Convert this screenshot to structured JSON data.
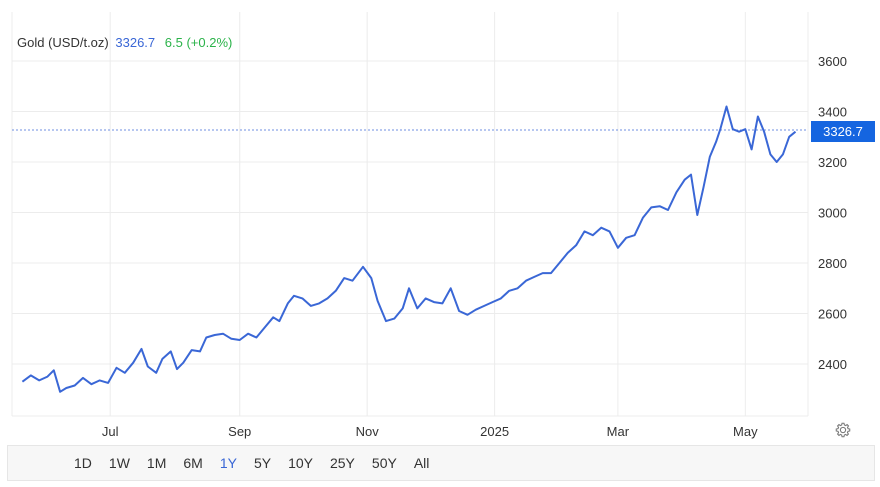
{
  "header": {
    "name": "Gold (USD/t.oz)",
    "price": "3326.7",
    "change": "6.5 (+0.2%)"
  },
  "price_tag": "3326.7",
  "colors": {
    "line": "#3a67d6",
    "tag": "#1565e0",
    "positive": "#2bb34a"
  },
  "range_buttons": [
    "1D",
    "1W",
    "1M",
    "6M",
    "1Y",
    "5Y",
    "10Y",
    "25Y",
    "50Y",
    "All"
  ],
  "active_range": "1Y",
  "settings_icon": "gear-icon",
  "chart_data": {
    "type": "line",
    "title": "",
    "xlabel": "",
    "ylabel": "",
    "ylim": [
      2200,
      3700
    ],
    "yticks": [
      2400,
      2600,
      2800,
      3000,
      3200,
      3400,
      3600
    ],
    "x_axis": [
      "Jul",
      "Sep",
      "Nov",
      "2025",
      "Mar",
      "May"
    ],
    "x_ticks": [
      "2024-07-01",
      "2024-09-01",
      "2024-11-01",
      "2025-01-01",
      "2025-03-01",
      "2025-05-01"
    ],
    "x_range": [
      "2024-05-15",
      "2025-05-31"
    ],
    "last_value": 3326.7,
    "grid": true,
    "series": [
      {
        "x": [
          "2024-05-20",
          "2024-05-24",
          "2024-05-28",
          "2024-06-01",
          "2024-06-04",
          "2024-06-07",
          "2024-06-10",
          "2024-06-14",
          "2024-06-18",
          "2024-06-22",
          "2024-06-26",
          "2024-06-30",
          "2024-07-04",
          "2024-07-08",
          "2024-07-12",
          "2024-07-16",
          "2024-07-19",
          "2024-07-23",
          "2024-07-26",
          "2024-07-30",
          "2024-08-02",
          "2024-08-05",
          "2024-08-09",
          "2024-08-13",
          "2024-08-16",
          "2024-08-20",
          "2024-08-24",
          "2024-08-28",
          "2024-09-01",
          "2024-09-05",
          "2024-09-09",
          "2024-09-13",
          "2024-09-17",
          "2024-09-20",
          "2024-09-24",
          "2024-09-27",
          "2024-10-01",
          "2024-10-05",
          "2024-10-09",
          "2024-10-13",
          "2024-10-17",
          "2024-10-21",
          "2024-10-25",
          "2024-10-30",
          "2024-11-03",
          "2024-11-06",
          "2024-11-10",
          "2024-11-14",
          "2024-11-18",
          "2024-11-21",
          "2024-11-25",
          "2024-11-29",
          "2024-12-03",
          "2024-12-07",
          "2024-12-11",
          "2024-12-15",
          "2024-12-19",
          "2024-12-23",
          "2024-12-27",
          "2024-12-31",
          "2025-01-04",
          "2025-01-08",
          "2025-01-12",
          "2025-01-16",
          "2025-01-20",
          "2025-01-24",
          "2025-01-28",
          "2025-02-01",
          "2025-02-05",
          "2025-02-09",
          "2025-02-13",
          "2025-02-17",
          "2025-02-21",
          "2025-02-25",
          "2025-03-01",
          "2025-03-05",
          "2025-03-09",
          "2025-03-13",
          "2025-03-17",
          "2025-03-21",
          "2025-03-25",
          "2025-03-29",
          "2025-04-02",
          "2025-04-05",
          "2025-04-08",
          "2025-04-11",
          "2025-04-14",
          "2025-04-17",
          "2025-04-19",
          "2025-04-22",
          "2025-04-25",
          "2025-04-28",
          "2025-05-01",
          "2025-05-04",
          "2025-05-07",
          "2025-05-10",
          "2025-05-13",
          "2025-05-16",
          "2025-05-19",
          "2025-05-22",
          "2025-05-25"
        ],
        "y": [
          2330,
          2355,
          2335,
          2350,
          2375,
          2290,
          2305,
          2315,
          2345,
          2320,
          2335,
          2325,
          2385,
          2365,
          2405,
          2460,
          2390,
          2365,
          2420,
          2450,
          2380,
          2405,
          2455,
          2450,
          2505,
          2515,
          2520,
          2500,
          2495,
          2520,
          2505,
          2545,
          2585,
          2570,
          2640,
          2670,
          2660,
          2630,
          2640,
          2660,
          2690,
          2740,
          2730,
          2785,
          2740,
          2650,
          2570,
          2580,
          2620,
          2700,
          2620,
          2660,
          2645,
          2640,
          2700,
          2610,
          2595,
          2615,
          2630,
          2645,
          2660,
          2690,
          2700,
          2730,
          2745,
          2760,
          2760,
          2800,
          2840,
          2870,
          2925,
          2910,
          2940,
          2925,
          2860,
          2900,
          2910,
          2980,
          3020,
          3025,
          3010,
          3080,
          3130,
          3150,
          2990,
          3100,
          3220,
          3280,
          3330,
          3420,
          3330,
          3320,
          3330,
          3250,
          3380,
          3320,
          3230,
          3200,
          3230,
          3300,
          3320
        ]
      }
    ]
  }
}
